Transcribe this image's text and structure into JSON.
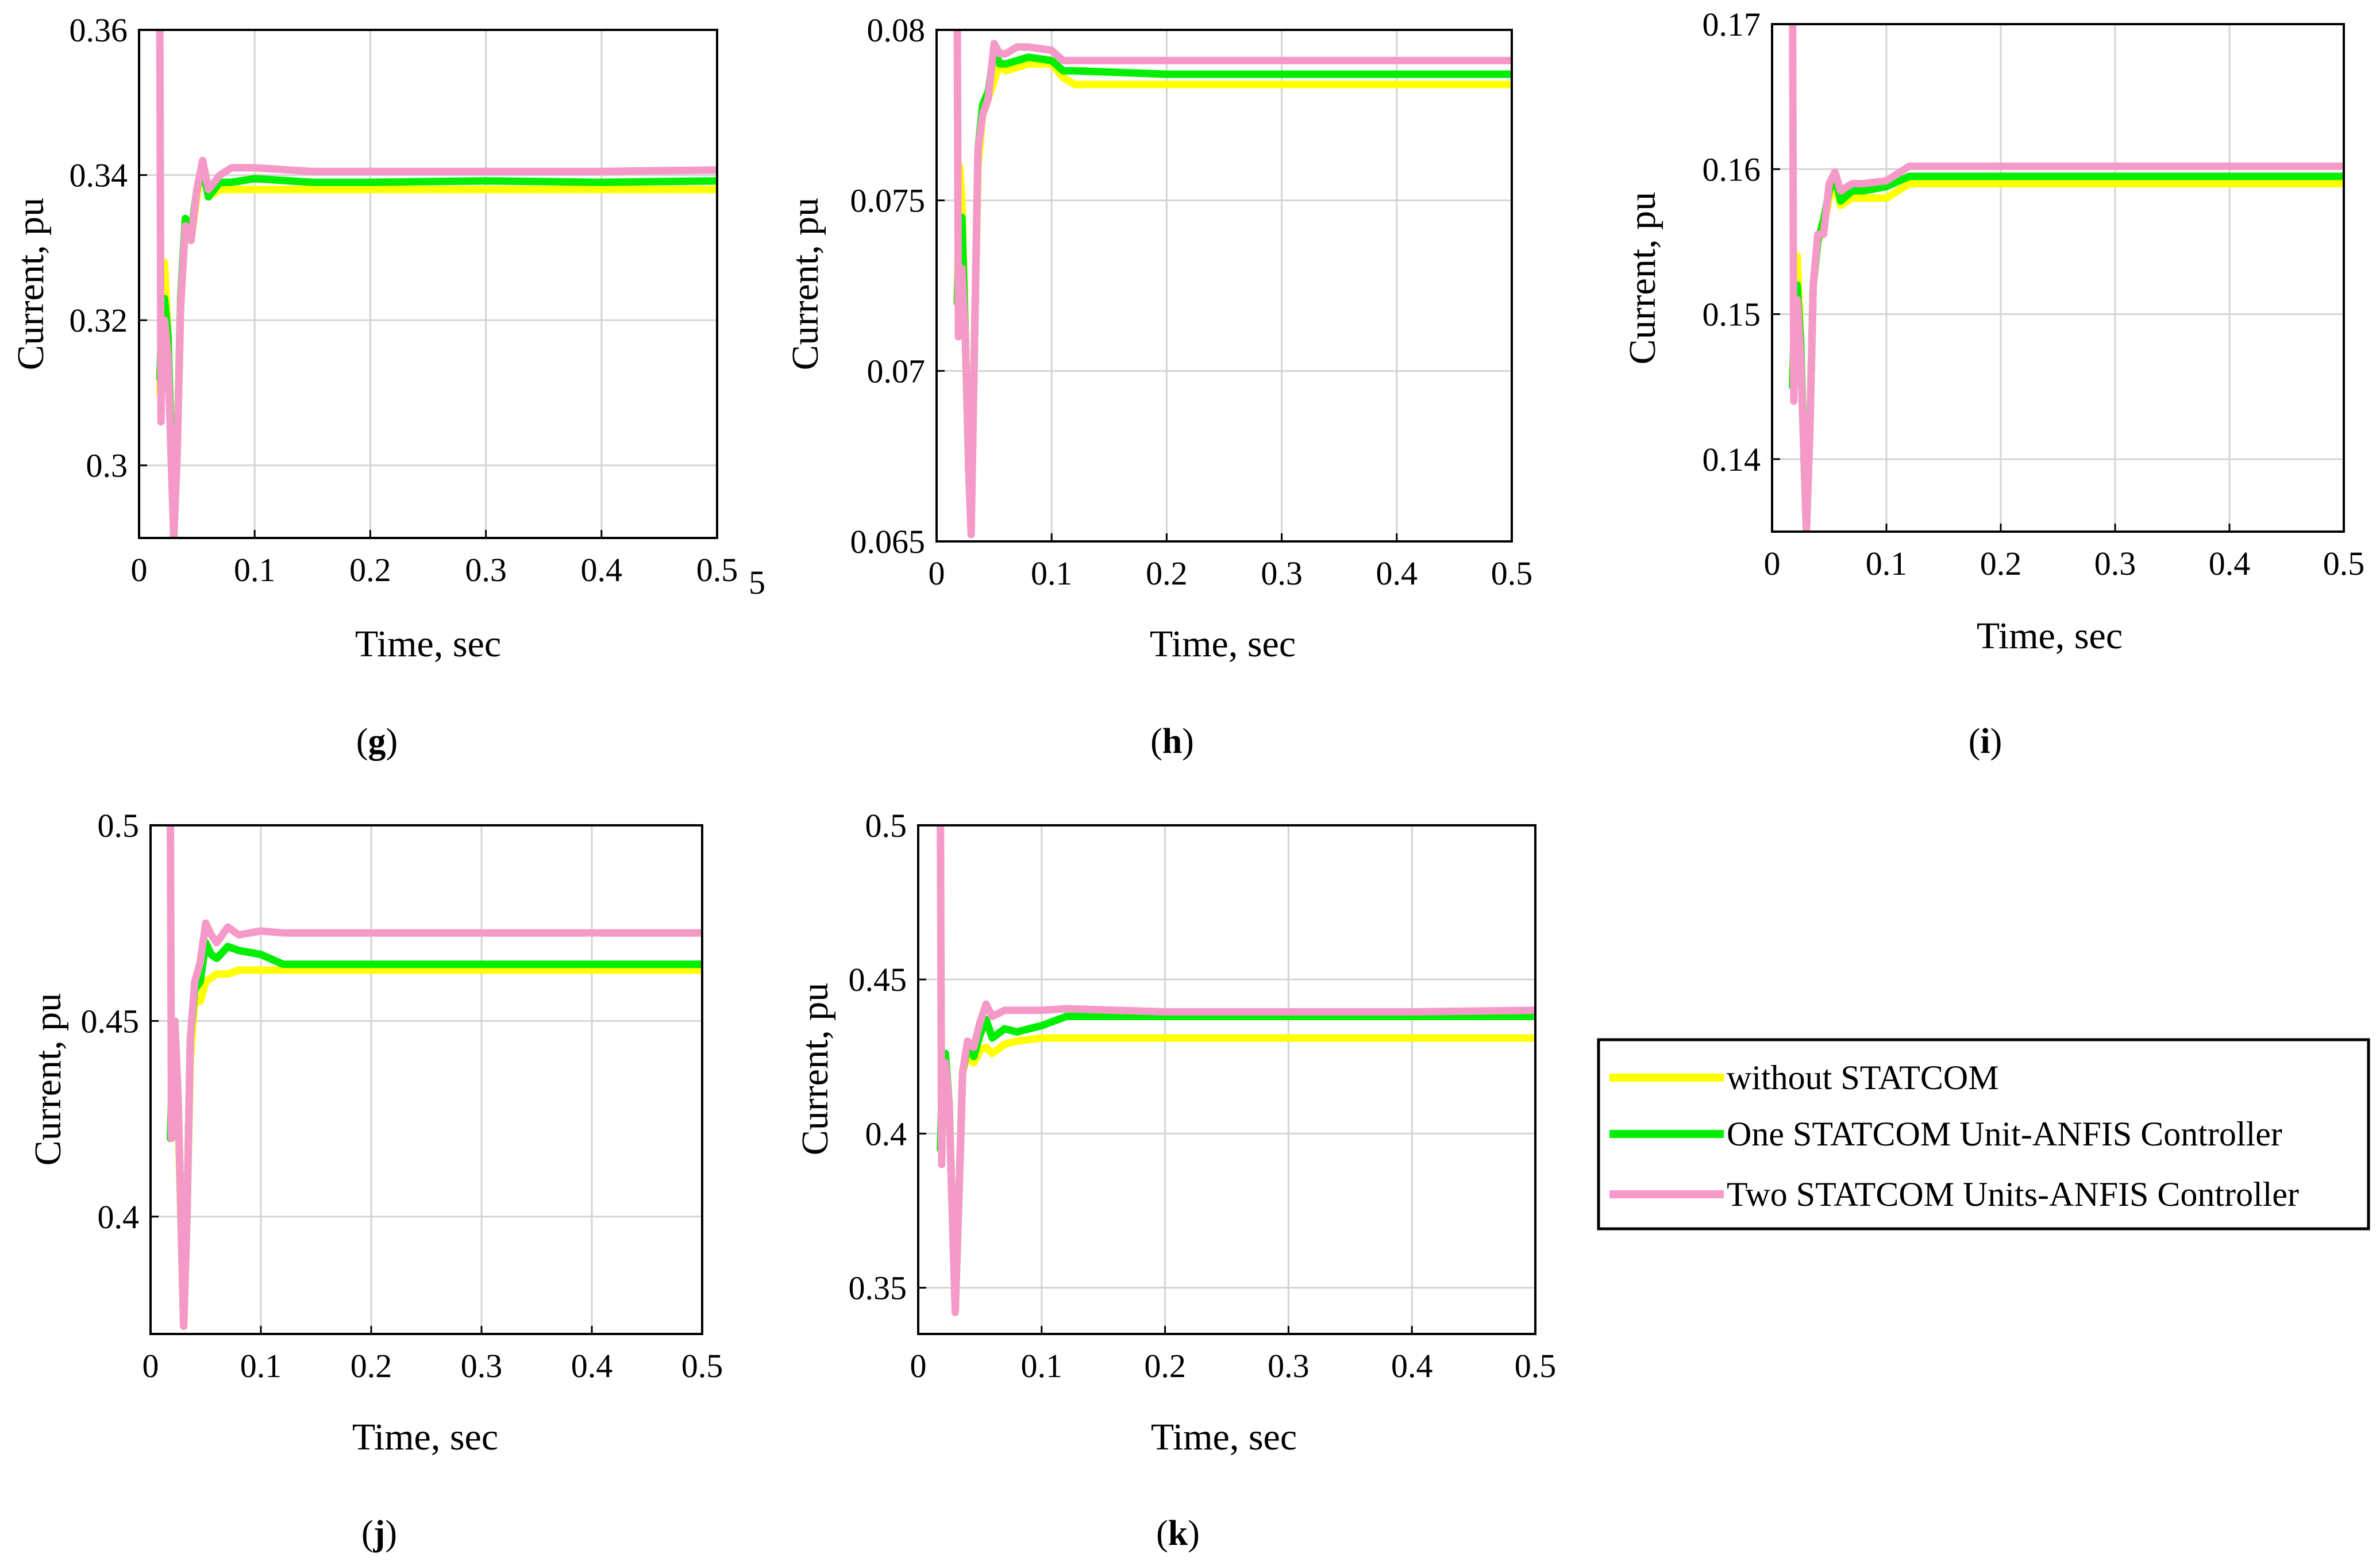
{
  "figure": {
    "colors": {
      "without": "#ffff00",
      "one": "#00ee00",
      "two": "#f59ac8",
      "grid": "#d4d4d4",
      "axis": "#000000"
    }
  },
  "legend": {
    "items": [
      {
        "key": "without",
        "label": "without STATCOM"
      },
      {
        "key": "one",
        "label": "One STATCOM Unit-ANFIS Controller"
      },
      {
        "key": "two",
        "label": "Two STATCOM Units-ANFIS Controller"
      }
    ]
  },
  "chart_data": [
    {
      "id": "g",
      "panel_label": "g",
      "type": "line",
      "xlabel": "Time, sec",
      "ylabel": "Current, pu",
      "xlim": [
        0,
        0.5
      ],
      "ylim": [
        0.29,
        0.36
      ],
      "xticks": [
        "0",
        "0.1",
        "0.2",
        "0.3",
        "0.4",
        "0.5"
      ],
      "yticks": [
        "0.3",
        "0.32",
        "0.34",
        "0.36"
      ],
      "ytick_values": [
        0.3,
        0.32,
        0.34,
        0.36
      ],
      "stray_tick": "5",
      "series": [
        {
          "name": "without STATCOM",
          "key": "without",
          "x": [
            0.018,
            0.02,
            0.022,
            0.025,
            0.028,
            0.03,
            0.033,
            0.036,
            0.04,
            0.045,
            0.05,
            0.055,
            0.06,
            0.07,
            0.08,
            0.1,
            0.15,
            0.2,
            0.3,
            0.4,
            0.5
          ],
          "y": [
            0.31,
            0.322,
            0.328,
            0.318,
            0.302,
            0.29,
            0.302,
            0.322,
            0.333,
            0.331,
            0.337,
            0.341,
            0.337,
            0.338,
            0.338,
            0.338,
            0.338,
            0.338,
            0.338,
            0.338,
            0.338
          ]
        },
        {
          "name": "One STATCOM Unit-ANFIS Controller",
          "key": "one",
          "x": [
            0.018,
            0.02,
            0.022,
            0.025,
            0.028,
            0.03,
            0.033,
            0.036,
            0.04,
            0.045,
            0.05,
            0.055,
            0.06,
            0.07,
            0.08,
            0.1,
            0.15,
            0.2,
            0.3,
            0.4,
            0.5
          ],
          "y": [
            0.312,
            0.322,
            0.323,
            0.318,
            0.302,
            0.29,
            0.302,
            0.323,
            0.334,
            0.332,
            0.338,
            0.341,
            0.337,
            0.339,
            0.339,
            0.3395,
            0.339,
            0.339,
            0.3392,
            0.339,
            0.3392
          ]
        },
        {
          "name": "Two STATCOM Units-ANFIS Controller",
          "key": "two",
          "x": [
            0.018,
            0.019,
            0.02,
            0.022,
            0.025,
            0.028,
            0.03,
            0.033,
            0.036,
            0.04,
            0.045,
            0.05,
            0.055,
            0.06,
            0.07,
            0.08,
            0.1,
            0.15,
            0.2,
            0.3,
            0.4,
            0.5
          ],
          "y": [
            0.36,
            0.306,
            0.318,
            0.32,
            0.315,
            0.3,
            0.29,
            0.302,
            0.322,
            0.333,
            0.331,
            0.338,
            0.342,
            0.338,
            0.34,
            0.341,
            0.341,
            0.3405,
            0.3405,
            0.3405,
            0.3405,
            0.3407
          ]
        }
      ]
    },
    {
      "id": "h",
      "panel_label": "h",
      "type": "line",
      "xlabel": "Time, sec",
      "ylabel": "Current, pu",
      "xlim": [
        0,
        0.5
      ],
      "ylim": [
        0.065,
        0.08
      ],
      "xticks": [
        "0",
        "0.1",
        "0.2",
        "0.3",
        "0.4",
        "0.5"
      ],
      "yticks": [
        "0.065",
        "0.07",
        "0.075",
        "0.08"
      ],
      "ytick_values": [
        0.065,
        0.07,
        0.075,
        0.08
      ],
      "series": [
        {
          "name": "without STATCOM",
          "key": "without",
          "x": [
            0.018,
            0.02,
            0.022,
            0.025,
            0.028,
            0.03,
            0.033,
            0.036,
            0.04,
            0.045,
            0.05,
            0.055,
            0.06,
            0.07,
            0.08,
            0.1,
            0.11,
            0.12,
            0.2,
            0.3,
            0.4,
            0.5
          ],
          "y": [
            0.072,
            0.076,
            0.075,
            0.071,
            0.067,
            0.0655,
            0.071,
            0.076,
            0.0775,
            0.078,
            0.0785,
            0.079,
            0.0788,
            0.0789,
            0.079,
            0.079,
            0.0786,
            0.0784,
            0.0784,
            0.0784,
            0.0784,
            0.0784
          ]
        },
        {
          "name": "One STATCOM Unit-ANFIS Controller",
          "key": "one",
          "x": [
            0.018,
            0.02,
            0.022,
            0.025,
            0.028,
            0.03,
            0.033,
            0.036,
            0.04,
            0.045,
            0.05,
            0.055,
            0.06,
            0.07,
            0.08,
            0.1,
            0.11,
            0.12,
            0.2,
            0.3,
            0.4,
            0.5
          ],
          "y": [
            0.072,
            0.0745,
            0.0745,
            0.071,
            0.067,
            0.0655,
            0.071,
            0.0765,
            0.0778,
            0.0782,
            0.0794,
            0.079,
            0.079,
            0.0791,
            0.0792,
            0.0791,
            0.0788,
            0.0788,
            0.0787,
            0.0787,
            0.0787,
            0.0787
          ]
        },
        {
          "name": "Two STATCOM Units-ANFIS Controller",
          "key": "two",
          "x": [
            0.018,
            0.019,
            0.02,
            0.022,
            0.025,
            0.028,
            0.03,
            0.033,
            0.036,
            0.04,
            0.045,
            0.05,
            0.055,
            0.06,
            0.07,
            0.08,
            0.1,
            0.11,
            0.12,
            0.2,
            0.3,
            0.4,
            0.5
          ],
          "y": [
            0.08,
            0.071,
            0.0725,
            0.073,
            0.071,
            0.067,
            0.0652,
            0.071,
            0.0765,
            0.0775,
            0.078,
            0.0796,
            0.0793,
            0.0793,
            0.0795,
            0.0795,
            0.0794,
            0.0791,
            0.0791,
            0.0791,
            0.0791,
            0.0791,
            0.0791
          ]
        }
      ]
    },
    {
      "id": "i",
      "panel_label": "i",
      "type": "line",
      "xlabel": "Time, sec",
      "ylabel": "Current, pu",
      "xlim": [
        0,
        0.5
      ],
      "ylim": [
        0.135,
        0.17
      ],
      "xticks": [
        "0",
        "0.1",
        "0.2",
        "0.3",
        "0.4",
        "0.5"
      ],
      "yticks": [
        "0.14",
        "0.15",
        "0.16",
        "0.17"
      ],
      "ytick_values": [
        0.14,
        0.15,
        0.16,
        0.17
      ],
      "series": [
        {
          "name": "without STATCOM",
          "key": "without",
          "x": [
            0.018,
            0.02,
            0.022,
            0.025,
            0.028,
            0.03,
            0.033,
            0.036,
            0.04,
            0.045,
            0.05,
            0.055,
            0.06,
            0.07,
            0.08,
            0.1,
            0.12,
            0.15,
            0.2,
            0.3,
            0.4,
            0.5
          ],
          "y": [
            0.145,
            0.152,
            0.154,
            0.148,
            0.14,
            0.135,
            0.142,
            0.152,
            0.155,
            0.156,
            0.158,
            0.159,
            0.1575,
            0.158,
            0.158,
            0.158,
            0.159,
            0.159,
            0.159,
            0.159,
            0.159,
            0.159
          ]
        },
        {
          "name": "One STATCOM Unit-ANFIS Controller",
          "key": "one",
          "x": [
            0.018,
            0.02,
            0.022,
            0.025,
            0.028,
            0.03,
            0.033,
            0.036,
            0.04,
            0.045,
            0.05,
            0.055,
            0.06,
            0.07,
            0.08,
            0.1,
            0.12,
            0.15,
            0.2,
            0.3,
            0.4,
            0.5
          ],
          "y": [
            0.145,
            0.151,
            0.152,
            0.148,
            0.14,
            0.135,
            0.142,
            0.152,
            0.155,
            0.1565,
            0.1585,
            0.1595,
            0.1578,
            0.1585,
            0.1585,
            0.1588,
            0.1595,
            0.1595,
            0.1595,
            0.1595,
            0.1595,
            0.1595
          ]
        },
        {
          "name": "Two STATCOM Units-ANFIS Controller",
          "key": "two",
          "x": [
            0.018,
            0.019,
            0.02,
            0.022,
            0.025,
            0.028,
            0.03,
            0.033,
            0.036,
            0.04,
            0.045,
            0.05,
            0.055,
            0.06,
            0.07,
            0.08,
            0.1,
            0.12,
            0.15,
            0.2,
            0.3,
            0.4,
            0.5
          ],
          "y": [
            0.17,
            0.144,
            0.15,
            0.151,
            0.147,
            0.14,
            0.135,
            0.142,
            0.152,
            0.1555,
            0.1555,
            0.159,
            0.1598,
            0.1585,
            0.159,
            0.159,
            0.1592,
            0.1602,
            0.1602,
            0.1602,
            0.1602,
            0.1602,
            0.1602
          ]
        }
      ]
    },
    {
      "id": "j",
      "panel_label": "j",
      "type": "line",
      "xlabel": "Time, sec",
      "ylabel": "Current, pu",
      "xlim": [
        0,
        0.5
      ],
      "ylim": [
        0.37,
        0.5
      ],
      "xticks": [
        "0",
        "0.1",
        "0.2",
        "0.3",
        "0.4",
        "0.5"
      ],
      "yticks": [
        "0.4",
        "0.45",
        "0.5"
      ],
      "ytick_values": [
        0.4,
        0.45,
        0.5
      ],
      "series": [
        {
          "name": "without STATCOM",
          "key": "without",
          "x": [
            0.018,
            0.02,
            0.022,
            0.025,
            0.028,
            0.03,
            0.033,
            0.036,
            0.04,
            0.045,
            0.05,
            0.055,
            0.06,
            0.07,
            0.08,
            0.1,
            0.12,
            0.2,
            0.3,
            0.4,
            0.5
          ],
          "y": [
            0.42,
            0.435,
            0.44,
            0.425,
            0.395,
            0.372,
            0.4,
            0.44,
            0.455,
            0.455,
            0.46,
            0.461,
            0.462,
            0.462,
            0.463,
            0.463,
            0.463,
            0.463,
            0.463,
            0.463,
            0.463
          ]
        },
        {
          "name": "One STATCOM Unit-ANFIS Controller",
          "key": "one",
          "x": [
            0.018,
            0.02,
            0.022,
            0.025,
            0.028,
            0.03,
            0.033,
            0.036,
            0.04,
            0.045,
            0.05,
            0.055,
            0.06,
            0.07,
            0.08,
            0.1,
            0.12,
            0.2,
            0.3,
            0.4,
            0.5
          ],
          "y": [
            0.42,
            0.44,
            0.45,
            0.43,
            0.395,
            0.372,
            0.4,
            0.445,
            0.458,
            0.46,
            0.47,
            0.467,
            0.466,
            0.469,
            0.468,
            0.467,
            0.4645,
            0.4645,
            0.4645,
            0.4645,
            0.4645
          ]
        },
        {
          "name": "Two STATCOM Units-ANFIS Controller",
          "key": "two",
          "x": [
            0.018,
            0.019,
            0.02,
            0.022,
            0.025,
            0.028,
            0.03,
            0.033,
            0.036,
            0.04,
            0.045,
            0.05,
            0.055,
            0.06,
            0.07,
            0.08,
            0.1,
            0.12,
            0.2,
            0.3,
            0.4,
            0.5
          ],
          "y": [
            0.5,
            0.42,
            0.44,
            0.45,
            0.43,
            0.395,
            0.372,
            0.4,
            0.445,
            0.46,
            0.465,
            0.475,
            0.472,
            0.47,
            0.474,
            0.472,
            0.473,
            0.4725,
            0.4725,
            0.4725,
            0.4725,
            0.4725
          ]
        }
      ]
    },
    {
      "id": "k",
      "panel_label": "k",
      "type": "line",
      "xlabel": "Time, sec",
      "ylabel": "Current, pu",
      "xlim": [
        0,
        0.5
      ],
      "ylim": [
        0.335,
        0.5
      ],
      "xticks": [
        "0",
        "0.1",
        "0.2",
        "0.3",
        "0.4",
        "0.5"
      ],
      "yticks": [
        "0.35",
        "0.4",
        "0.45",
        "0.5"
      ],
      "ytick_values": [
        0.35,
        0.4,
        0.45,
        0.5
      ],
      "series": [
        {
          "name": "without STATCOM",
          "key": "without",
          "x": [
            0.018,
            0.02,
            0.022,
            0.025,
            0.028,
            0.03,
            0.033,
            0.036,
            0.04,
            0.045,
            0.05,
            0.055,
            0.06,
            0.07,
            0.08,
            0.1,
            0.12,
            0.2,
            0.3,
            0.4,
            0.5
          ],
          "y": [
            0.395,
            0.42,
            0.425,
            0.41,
            0.37,
            0.345,
            0.38,
            0.42,
            0.425,
            0.423,
            0.427,
            0.428,
            0.426,
            0.429,
            0.43,
            0.431,
            0.431,
            0.431,
            0.431,
            0.431,
            0.431
          ]
        },
        {
          "name": "One STATCOM Unit-ANFIS Controller",
          "key": "one",
          "x": [
            0.018,
            0.02,
            0.022,
            0.025,
            0.028,
            0.03,
            0.033,
            0.036,
            0.04,
            0.045,
            0.05,
            0.055,
            0.06,
            0.07,
            0.08,
            0.1,
            0.12,
            0.2,
            0.3,
            0.4,
            0.5
          ],
          "y": [
            0.395,
            0.425,
            0.426,
            0.41,
            0.37,
            0.343,
            0.38,
            0.42,
            0.428,
            0.425,
            0.432,
            0.437,
            0.431,
            0.434,
            0.433,
            0.435,
            0.438,
            0.438,
            0.438,
            0.438,
            0.438
          ]
        },
        {
          "name": "Two STATCOM Units-ANFIS Controller",
          "key": "two",
          "x": [
            0.018,
            0.019,
            0.02,
            0.022,
            0.025,
            0.028,
            0.03,
            0.033,
            0.036,
            0.04,
            0.045,
            0.05,
            0.055,
            0.06,
            0.07,
            0.08,
            0.1,
            0.12,
            0.2,
            0.3,
            0.4,
            0.5
          ],
          "y": [
            0.5,
            0.39,
            0.42,
            0.423,
            0.41,
            0.37,
            0.342,
            0.38,
            0.42,
            0.43,
            0.428,
            0.436,
            0.442,
            0.438,
            0.44,
            0.44,
            0.44,
            0.4405,
            0.4395,
            0.4395,
            0.4395,
            0.44
          ]
        }
      ]
    }
  ]
}
